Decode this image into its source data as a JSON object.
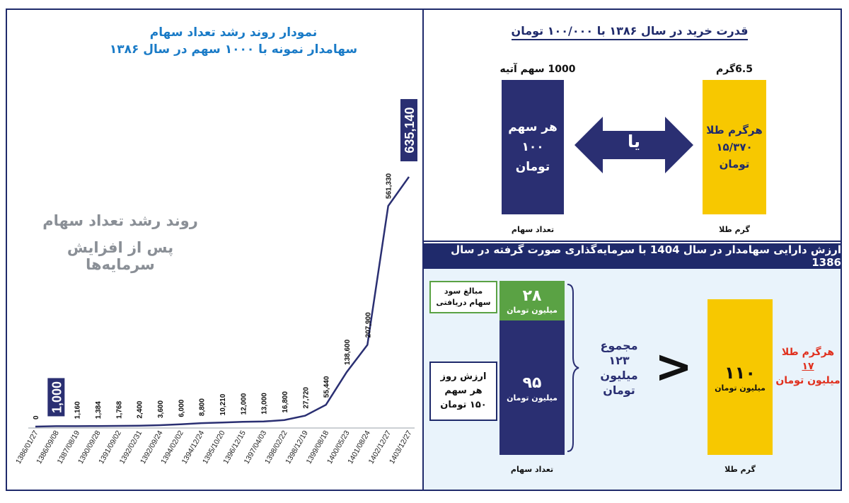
{
  "colors": {
    "navy": "#2a2f72",
    "gold": "#f7c800",
    "green": "#5aa244",
    "blue_title": "#1a7bc7",
    "red": "#e0301e",
    "line": "#2a2f72"
  },
  "left_panel": {
    "title_line1": "نمودار روند رشد تعداد سهام",
    "title_line2": "سهامدار نمونه با ۱۰۰۰ سهم در سال ۱۳۸۶",
    "watermark_line1": "روند رشد تعداد سهام",
    "watermark_line2": "پس از افزایش سرمایه‌ها"
  },
  "chart_data": {
    "type": "line",
    "title": "نمودار روند رشد تعداد سهام",
    "subtitle": "سهامدار نمونه با ۱۰۰۰ سهم در سال ۱۳۸۶",
    "categories": [
      "1386/01/27",
      "1386/09/08",
      "1387/08/19",
      "1390/09/28",
      "1391/09/02",
      "1392/02/31",
      "1392/09/24",
      "1394/02/02",
      "1394/12/24",
      "1395/10/20",
      "1396/12/15",
      "1397/04/03",
      "1398/02/22",
      "1398/12/19",
      "1399/08/18",
      "1400/05/23",
      "1401/08/24",
      "1402/12/27",
      "1403/12/27"
    ],
    "values": [
      0,
      1000,
      1160,
      1384,
      1768,
      2400,
      3600,
      6000,
      8800,
      10210,
      12000,
      13000,
      16800,
      27720,
      55440,
      138600,
      207900,
      561330,
      635140
    ],
    "labels": [
      "0",
      "1,000",
      "1,160",
      "1,384",
      "1,768",
      "2,400",
      "3,600",
      "6,000",
      "8,800",
      "10,210",
      "12,000",
      "13,000",
      "16,800",
      "27,720",
      "55,440",
      "138,600",
      "207,900",
      "561,330",
      "635,140"
    ],
    "highlighted": [
      1,
      18
    ],
    "ylim": [
      0,
      700000
    ],
    "grid": false,
    "legend": "none"
  },
  "top_right": {
    "title": "قدرت خرید در سال ۱۳۸۶ با ۱۰۰/۰۰۰ تومان",
    "left_bar_caption": "1000 سهم آتیه",
    "left_bar_line1": "هر سهم",
    "left_bar_line2": "۱۰۰",
    "left_bar_line3": "تومان",
    "left_bar_label": "تعداد سهام",
    "arrow_text": "یا",
    "right_bar_caption": "6.5گرم",
    "right_bar_line1": "هرگرم طلا",
    "right_bar_line2": "۱۵/۳۷۰",
    "right_bar_line3": "تومان",
    "right_bar_label": "گرم طلا"
  },
  "bottom_right": {
    "banner": "ارزش دارایی سهامدار در سال 1404 با سرمایه‌گذاری صورت گرفته در سال 1386",
    "dividend_note_line1": "مبالغ سود",
    "dividend_note_line2": "سهام دریافتی",
    "price_note_line1": "ارزش روز",
    "price_note_line2": "هر سهم",
    "price_note_line3": "۱۵۰ تومان",
    "green_value": "۲۸",
    "green_unit": "میلیون تومان",
    "navy_value": "۹۵",
    "navy_unit": "میلیون تومان",
    "left_bar_label": "تعداد سهام",
    "total_line1": "مجموع",
    "total_line2": "۱۲۳",
    "total_line3": "میلیون",
    "total_line4": "تومان",
    "compare_sign": ">",
    "gold_value": "۱۱۰",
    "gold_unit": "میلیون تومان",
    "right_bar_label": "گرم طلا",
    "red_line1": "هرگرم طلا",
    "red_line2": "۱۷",
    "red_line3": "میلیون تومان"
  }
}
